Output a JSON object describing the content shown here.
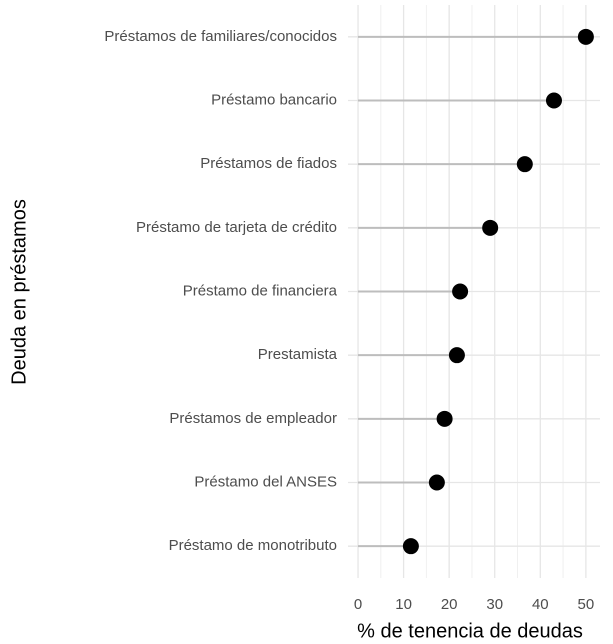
{
  "chart_data": {
    "type": "lollipop",
    "categories": [
      "Préstamos de familiares/conocidos",
      "Préstamo bancario",
      "Préstamos de fiados",
      "Préstamo de tarjeta de crédito",
      "Préstamo de financiera",
      "Prestamista",
      "Préstamos de empleador",
      "Préstamo del ANSES",
      "Préstamo de monotributo"
    ],
    "values": [
      50,
      43,
      36.6,
      29,
      22.4,
      21.7,
      19,
      17.3,
      11.6
    ],
    "color": "#000000",
    "xlabel": "% de tenencia de deudas",
    "ylabel": "Deuda en préstamos",
    "xlim": [
      -2.2,
      53.1
    ],
    "xticks": [
      0,
      10,
      20,
      30,
      40,
      50
    ],
    "minor_xticks": [
      5,
      15,
      25,
      35,
      45
    ],
    "grid": true
  }
}
